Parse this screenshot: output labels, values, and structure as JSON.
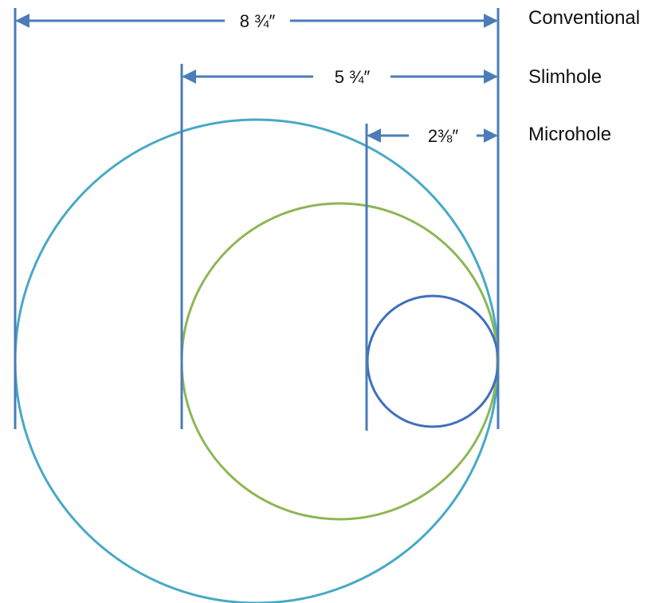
{
  "colors": {
    "dimension_line": "#4a7cb8",
    "conventional_circle": "#47a9c6",
    "slimhole_circle": "#8db654",
    "microhole_circle": "#3f6fbd",
    "text": "#111111"
  },
  "sizes": [
    {
      "id": "conventional",
      "name": "Conventional",
      "diameter_label": "8 ¾″",
      "diameter_in": 8.75
    },
    {
      "id": "slimhole",
      "name": "Slimhole",
      "diameter_label": "5 ¾″",
      "diameter_in": 5.75
    },
    {
      "id": "microhole",
      "name": "Microhole",
      "diameter_label": "2⅜″",
      "diameter_in": 2.375
    }
  ]
}
